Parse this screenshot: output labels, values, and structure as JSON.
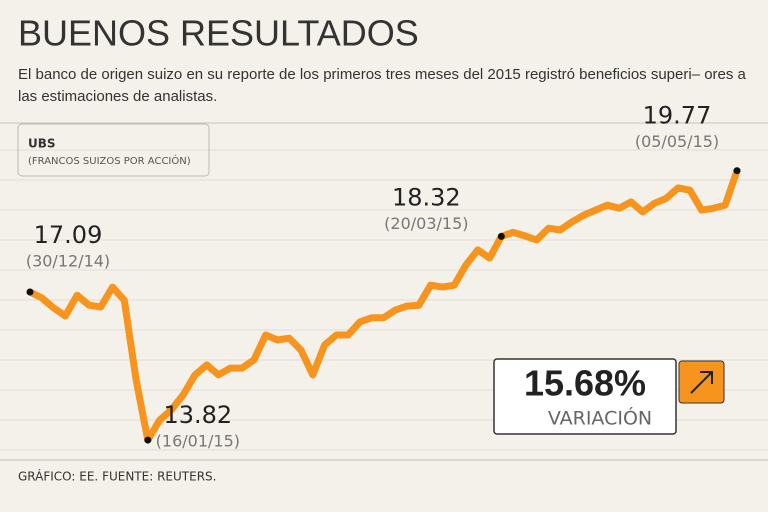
{
  "chart_data": {
    "type": "line",
    "title": "BUENOS RESULTADOS",
    "subtitle": "El banco de origen suizo en su reporte de los primeros tres meses del 2015 registró beneficios superi– ores a las estimaciones de analistas.",
    "legend_title": "UBS",
    "legend_subtitle": "(FRANCOS SUIZOS POR ACCIÓN)",
    "source": "GRÁFICO: EE. FUENTE: REUTERS.",
    "variation": "15.68%",
    "variation_label": "VARIACIÓN",
    "ylim": [
      13.38,
      20.89
    ],
    "series": [
      {
        "name": "UBS",
        "color": "#f7941d",
        "values": [
          17.09,
          16.96,
          16.74,
          16.56,
          17.02,
          16.8,
          16.76,
          17.2,
          16.91,
          15.15,
          13.82,
          14.26,
          14.49,
          14.82,
          15.26,
          15.48,
          15.26,
          15.41,
          15.41,
          15.59,
          16.14,
          16.03,
          16.07,
          15.81,
          15.26,
          15.92,
          16.14,
          16.14,
          16.43,
          16.52,
          16.52,
          16.69,
          16.78,
          16.8,
          17.24,
          17.2,
          17.24,
          17.69,
          18.02,
          17.84,
          18.32,
          18.41,
          18.33,
          18.24,
          18.5,
          18.46,
          18.64,
          18.79,
          18.9,
          19.01,
          18.94,
          19.08,
          18.86,
          19.05,
          19.16,
          19.39,
          19.34,
          18.9,
          18.94,
          19.01,
          19.77
        ]
      }
    ],
    "annotations": [
      {
        "value": 17.09,
        "date": "(30/12/14)"
      },
      {
        "value": 13.82,
        "date": "(16/01/15)"
      },
      {
        "value": 18.32,
        "date": "(20/03/15)"
      },
      {
        "value": 19.77,
        "date": "(05/05/15)"
      }
    ]
  }
}
